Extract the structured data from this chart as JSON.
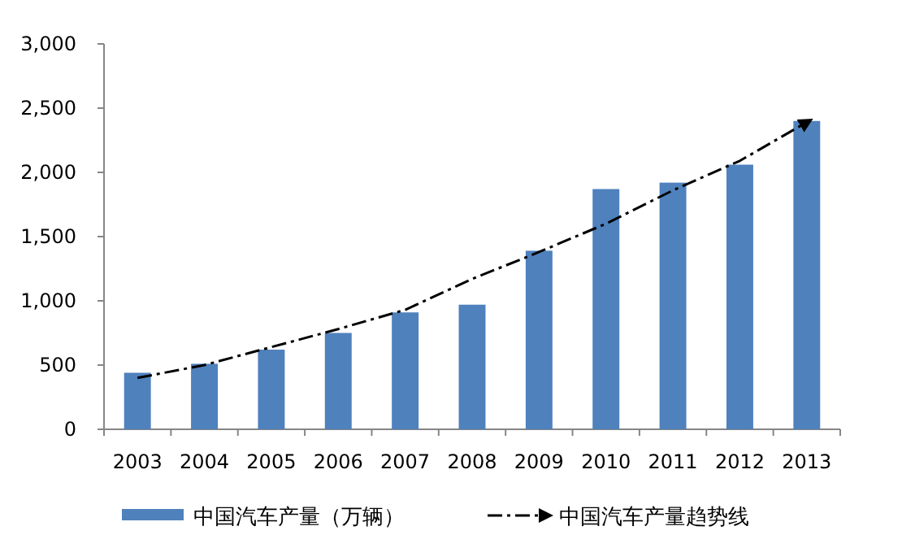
{
  "chart_data": {
    "type": "bar",
    "categories": [
      "2003",
      "2004",
      "2005",
      "2006",
      "2007",
      "2008",
      "2009",
      "2010",
      "2011",
      "2012",
      "2013"
    ],
    "series": [
      {
        "name": "中国汽车产量（万辆）",
        "color": "#4f81bd",
        "values": [
          440,
          510,
          620,
          750,
          910,
          970,
          1390,
          1870,
          1920,
          2060,
          2400
        ]
      },
      {
        "name": "中国汽车产量趋势线",
        "type": "line",
        "color": "#000000",
        "line_style": "dashed",
        "values": [
          400,
          500,
          640,
          780,
          930,
          1170,
          1380,
          1600,
          1860,
          2090,
          2390
        ]
      }
    ],
    "ylim": [
      0,
      3000
    ],
    "yticks": [
      {
        "value": 0,
        "label": "0"
      },
      {
        "value": 500,
        "label": "500"
      },
      {
        "value": 1000,
        "label": "1,000"
      },
      {
        "value": 1500,
        "label": "1,500"
      },
      {
        "value": 2000,
        "label": "2,000"
      },
      {
        "value": 2500,
        "label": "2,500"
      },
      {
        "value": 3000,
        "label": "3,000"
      }
    ],
    "grid": false,
    "legend": "bottom"
  }
}
